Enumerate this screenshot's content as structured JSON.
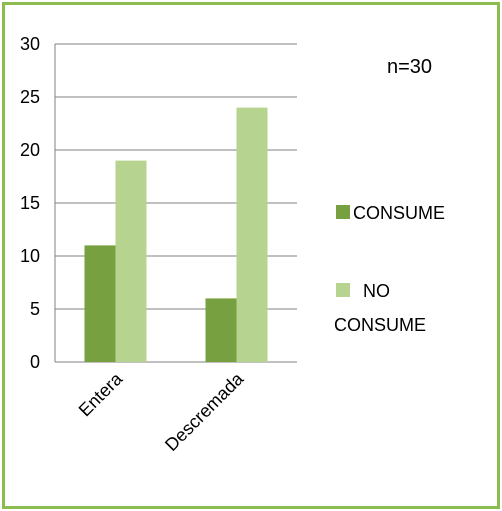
{
  "chart_data": {
    "type": "bar",
    "categories": [
      "Entera",
      "Descremada"
    ],
    "series": [
      {
        "name": "CONSUME",
        "values": [
          11,
          6
        ],
        "color": "#77a040"
      },
      {
        "name": "NO CONSUME",
        "values": [
          19,
          24
        ],
        "color": "#b6d48f"
      }
    ],
    "annotation": "n=30",
    "ylim": [
      0,
      30
    ],
    "yticks": [
      0,
      5,
      10,
      15,
      20,
      25,
      30
    ],
    "grid": true,
    "legend": "right",
    "frame_color": "#8cbb4f",
    "grid_color": "#808080"
  },
  "legend_labels": {
    "consume": "CONSUME",
    "no_consume_line1": "NO",
    "no_consume_line2": "CONSUME"
  }
}
